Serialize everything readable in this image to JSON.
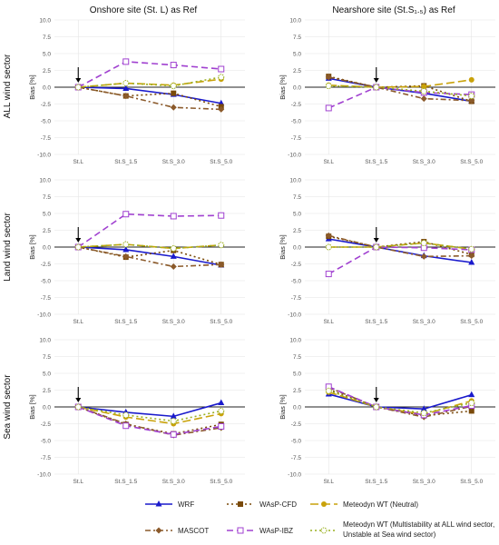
{
  "column_titles": [
    "Onshore site (St. L) as Ref",
    "Nearshore site (St.S₁.₅) as Ref"
  ],
  "row_labels": [
    "ALL wind sector",
    "Land wind sector",
    "Sea wind sector"
  ],
  "legend_items": [
    {
      "name": "WRF",
      "color": "#1a1acc",
      "dash": "",
      "marker": "triangle"
    },
    {
      "name": "WAsP-CFD",
      "color": "#7a4a0a",
      "dash": "2,3",
      "marker": "square"
    },
    {
      "name": "Meteodyn WT (Neutral)",
      "color": "#c9a20a",
      "dash": "9,4",
      "marker": "circle"
    },
    {
      "name": "MASCOT",
      "color": "#8b5a2b",
      "dash": "6,3,2,3",
      "marker": "diamond"
    },
    {
      "name": "WAsP-IBZ",
      "color": "#a040d0",
      "dash": "7,4",
      "marker": "square-open"
    },
    {
      "name": "Meteodyn WT (Multistability at ALL wind sector, Unstable at Sea wind sector)",
      "color": "#9ab020",
      "dash": "2,3",
      "marker": "circle-open"
    }
  ],
  "chart_data": [
    {
      "id": "all-onshore",
      "type": "line",
      "ylabel": "Bias [%]",
      "categories": [
        "St.L",
        "St.S_1.5",
        "St.S_3.0",
        "St.S_5.0"
      ],
      "ylim": [
        -10,
        10
      ],
      "yticks": [
        "10.0",
        "7.5",
        "5.0",
        "2.5",
        "0.0",
        "-2.5",
        "-5.0",
        "-7.5",
        "-10.0"
      ],
      "grid": true,
      "ref_arrow": "St.L",
      "series": [
        {
          "name": "WRF",
          "values": [
            0.0,
            -0.2,
            -1.1,
            -2.4
          ]
        },
        {
          "name": "WAsP-CFD",
          "values": [
            0.0,
            -1.3,
            -0.9,
            -2.9
          ]
        },
        {
          "name": "Meteodyn WT (Neutral)",
          "values": [
            0.0,
            0.6,
            0.3,
            1.2
          ]
        },
        {
          "name": "MASCOT",
          "values": [
            0.0,
            -1.3,
            -3.0,
            -3.3
          ]
        },
        {
          "name": "WAsP-IBZ",
          "values": [
            0.0,
            3.8,
            3.3,
            2.7
          ]
        },
        {
          "name": "Meteodyn WT (Multistability at ALL wind sector, Unstable at Sea wind sector)",
          "values": [
            0.0,
            0.6,
            0.2,
            1.5
          ]
        }
      ]
    },
    {
      "id": "all-nearshore",
      "type": "line",
      "ylabel": "Bias [%]",
      "categories": [
        "St.L",
        "St.S_1.5",
        "St.S_3.0",
        "St.S_5.0"
      ],
      "ylim": [
        -10,
        10
      ],
      "yticks": [
        "10.0",
        "7.5",
        "5.0",
        "2.5",
        "0.0",
        "-2.5",
        "-5.0",
        "-7.5",
        "-10.0"
      ],
      "grid": true,
      "ref_arrow": "St.S_1.5",
      "series": [
        {
          "name": "WRF",
          "values": [
            1.3,
            0.0,
            -0.9,
            -2.1
          ]
        },
        {
          "name": "WAsP-CFD",
          "values": [
            1.6,
            0.0,
            0.2,
            -2.1
          ]
        },
        {
          "name": "Meteodyn WT (Neutral)",
          "values": [
            0.3,
            0.0,
            0.1,
            1.1
          ]
        },
        {
          "name": "MASCOT",
          "values": [
            1.5,
            0.0,
            -1.7,
            -2.0
          ]
        },
        {
          "name": "WAsP-IBZ",
          "values": [
            -3.1,
            0.0,
            -0.8,
            -1.1
          ]
        },
        {
          "name": "Meteodyn WT (Multistability at ALL wind sector, Unstable at Sea wind sector)",
          "values": [
            0.2,
            0.0,
            -0.6,
            -1.3
          ]
        }
      ]
    },
    {
      "id": "land-onshore",
      "type": "line",
      "ylabel": "Bias [%]",
      "categories": [
        "St.L",
        "St.S_1.5",
        "St.S_3.0",
        "St.S_5.0"
      ],
      "ylim": [
        -10,
        10
      ],
      "yticks": [
        "10.0",
        "7.5",
        "5.0",
        "2.5",
        "0.0",
        "-2.5",
        "-5.0",
        "-7.5",
        "-10.0"
      ],
      "grid": true,
      "ref_arrow": "St.L",
      "series": [
        {
          "name": "WRF",
          "values": [
            0.0,
            -0.4,
            -1.4,
            -2.7
          ]
        },
        {
          "name": "WAsP-CFD",
          "values": [
            0.0,
            -1.5,
            -0.5,
            -2.6
          ]
        },
        {
          "name": "Meteodyn WT (Neutral)",
          "values": [
            0.0,
            0.4,
            -0.2,
            0.3
          ]
        },
        {
          "name": "MASCOT",
          "values": [
            0.0,
            -1.4,
            -2.9,
            -2.6
          ]
        },
        {
          "name": "WAsP-IBZ",
          "values": [
            0.0,
            4.9,
            4.6,
            4.7
          ]
        },
        {
          "name": "Meteodyn WT (Multistability at ALL wind sector, Unstable at Sea wind sector)",
          "values": [
            0.0,
            0.4,
            -0.2,
            0.3
          ]
        }
      ]
    },
    {
      "id": "land-nearshore",
      "type": "line",
      "ylabel": "Bias [%]",
      "categories": [
        "St.L",
        "St.S_1.5",
        "St.S_3.0",
        "St.S_5.0"
      ],
      "ylim": [
        -10,
        10
      ],
      "yticks": [
        "10.0",
        "7.5",
        "5.0",
        "2.5",
        "0.0",
        "-2.5",
        "-5.0",
        "-7.5",
        "-10.0"
      ],
      "grid": true,
      "ref_arrow": "St.S_1.5",
      "series": [
        {
          "name": "WRF",
          "values": [
            1.2,
            0.0,
            -1.3,
            -2.3
          ]
        },
        {
          "name": "WAsP-CFD",
          "values": [
            1.6,
            0.0,
            0.8,
            -1.1
          ]
        },
        {
          "name": "Meteodyn WT (Neutral)",
          "values": [
            0.0,
            0.0,
            0.6,
            -0.3
          ]
        },
        {
          "name": "MASCOT",
          "values": [
            1.7,
            0.0,
            -1.4,
            -1.3
          ]
        },
        {
          "name": "WAsP-IBZ",
          "values": [
            -4.0,
            0.0,
            -0.1,
            -0.4
          ]
        },
        {
          "name": "Meteodyn WT (Multistability at ALL wind sector, Unstable at Sea wind sector)",
          "values": [
            0.0,
            0.0,
            0.6,
            -0.3
          ]
        }
      ]
    },
    {
      "id": "sea-onshore",
      "type": "line",
      "ylabel": "Bias [%]",
      "categories": [
        "St.L",
        "St.S_1.5",
        "St.S_3.0",
        "St.S_5.0"
      ],
      "ylim": [
        -10,
        10
      ],
      "yticks": [
        "10.0",
        "7.5",
        "5.0",
        "2.5",
        "0.0",
        "-2.5",
        "-5.0",
        "-7.5",
        "-10.0"
      ],
      "grid": true,
      "ref_arrow": "St.L",
      "series": [
        {
          "name": "WRF",
          "values": [
            0.0,
            -0.8,
            -1.4,
            0.6
          ]
        },
        {
          "name": "WAsP-CFD",
          "values": [
            0.0,
            -2.6,
            -4.0,
            -2.6
          ]
        },
        {
          "name": "Meteodyn WT (Neutral)",
          "values": [
            0.0,
            -1.5,
            -2.5,
            -1.0
          ]
        },
        {
          "name": "MASCOT",
          "values": [
            0.0,
            -2.5,
            -4.2,
            -3.1
          ]
        },
        {
          "name": "WAsP-IBZ",
          "values": [
            0.0,
            -2.8,
            -4.1,
            -2.9
          ]
        },
        {
          "name": "Meteodyn WT (Multistability at ALL wind sector, Unstable at Sea wind sector)",
          "values": [
            0.0,
            -1.2,
            -2.1,
            -0.6
          ]
        }
      ]
    },
    {
      "id": "sea-nearshore",
      "type": "line",
      "ylabel": "Bias [%]",
      "categories": [
        "St.L",
        "St.S_1.5",
        "St.S_3.0",
        "St.S_5.0"
      ],
      "ylim": [
        -10,
        10
      ],
      "yticks": [
        "10.0",
        "7.5",
        "5.0",
        "2.5",
        "0.0",
        "-2.5",
        "-5.0",
        "-7.5",
        "-10.0"
      ],
      "grid": true,
      "ref_arrow": "St.S_1.5",
      "series": [
        {
          "name": "WRF",
          "values": [
            1.9,
            0.0,
            -0.3,
            1.8
          ]
        },
        {
          "name": "WAsP-CFD",
          "values": [
            2.6,
            0.0,
            -1.3,
            -0.6
          ]
        },
        {
          "name": "Meteodyn WT (Neutral)",
          "values": [
            2.2,
            0.0,
            -1.1,
            0.9
          ]
        },
        {
          "name": "MASCOT",
          "values": [
            2.9,
            0.0,
            -1.5,
            0.1
          ]
        },
        {
          "name": "WAsP-IBZ",
          "values": [
            3.0,
            0.0,
            -1.2,
            0.2
          ]
        },
        {
          "name": "Meteodyn WT (Multistability at ALL wind sector, Unstable at Sea wind sector)",
          "values": [
            2.4,
            0.0,
            -0.9,
            0.6
          ]
        }
      ]
    }
  ]
}
